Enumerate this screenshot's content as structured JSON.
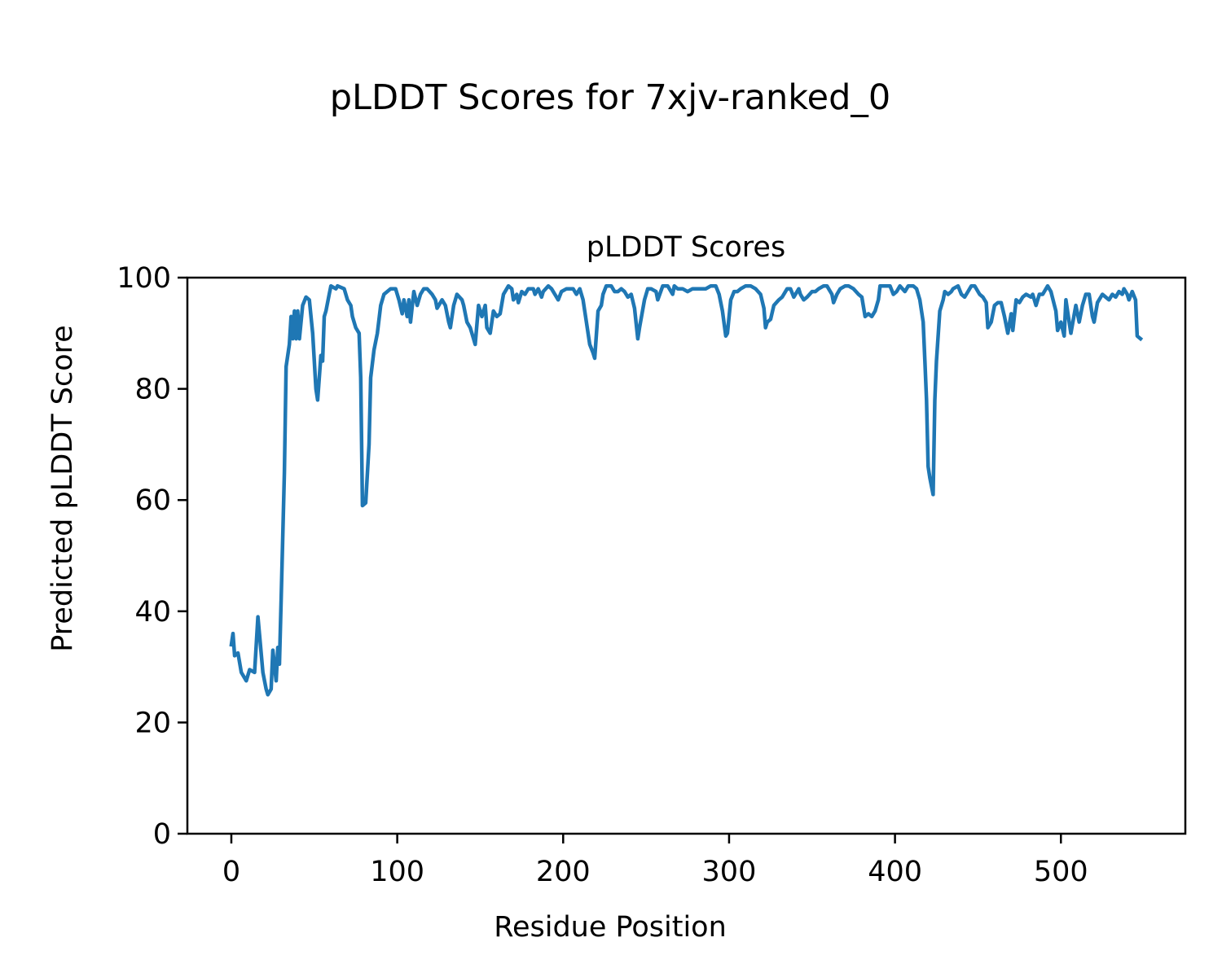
{
  "chart_data": {
    "type": "line",
    "suptitle": "pLDDT Scores for 7xjv-ranked_0",
    "title": "pLDDT Scores",
    "xlabel": "Residue Position",
    "ylabel": "Predicted pLDDT Score",
    "xlim": [
      -26.5,
      575
    ],
    "ylim": [
      0,
      100
    ],
    "xticks": [
      0,
      100,
      200,
      300,
      400,
      500
    ],
    "xtick_labels": [
      "0",
      "100",
      "200",
      "300",
      "400",
      "500"
    ],
    "yticks": [
      0,
      20,
      40,
      60,
      80,
      100
    ],
    "ytick_labels": [
      "0",
      "20",
      "40",
      "60",
      "80",
      "100"
    ],
    "grid": false,
    "series": [
      {
        "name": "pLDDT",
        "color": "#1f77b4",
        "points": [
          [
            0,
            34
          ],
          [
            1,
            36
          ],
          [
            2,
            32
          ],
          [
            4,
            32.5
          ],
          [
            6,
            29
          ],
          [
            9,
            27.5
          ],
          [
            11,
            29.5
          ],
          [
            14,
            29
          ],
          [
            16,
            39
          ],
          [
            19,
            29
          ],
          [
            21,
            26
          ],
          [
            22,
            25
          ],
          [
            24,
            26
          ],
          [
            25,
            33
          ],
          [
            27,
            27.5
          ],
          [
            28,
            33.5
          ],
          [
            29,
            30.5
          ],
          [
            30,
            42
          ],
          [
            32,
            65
          ],
          [
            33,
            84
          ],
          [
            35,
            88
          ],
          [
            36,
            93
          ],
          [
            37,
            89
          ],
          [
            38,
            94
          ],
          [
            39,
            89
          ],
          [
            40,
            94
          ],
          [
            41,
            89
          ],
          [
            43,
            95
          ],
          [
            45,
            96.5
          ],
          [
            47,
            96
          ],
          [
            49,
            90
          ],
          [
            51,
            80
          ],
          [
            52,
            78
          ],
          [
            54,
            86
          ],
          [
            55,
            85
          ],
          [
            56,
            93
          ],
          [
            57,
            94
          ],
          [
            59,
            97
          ],
          [
            60,
            98.5
          ],
          [
            63,
            98
          ],
          [
            64,
            98.5
          ],
          [
            68,
            98
          ],
          [
            70,
            96
          ],
          [
            72,
            95
          ],
          [
            73,
            93
          ],
          [
            75,
            91
          ],
          [
            77,
            90
          ],
          [
            78,
            82
          ],
          [
            79,
            59
          ],
          [
            81,
            59.5
          ],
          [
            83,
            70
          ],
          [
            84,
            82
          ],
          [
            86,
            87
          ],
          [
            88,
            90
          ],
          [
            90,
            95
          ],
          [
            92,
            97
          ],
          [
            96,
            98
          ],
          [
            99,
            98
          ],
          [
            101,
            96
          ],
          [
            103,
            93.5
          ],
          [
            104,
            96
          ],
          [
            106,
            93
          ],
          [
            107,
            96
          ],
          [
            108,
            92
          ],
          [
            110,
            97.5
          ],
          [
            112,
            95
          ],
          [
            114,
            97
          ],
          [
            116,
            98
          ],
          [
            118,
            98
          ],
          [
            121,
            97
          ],
          [
            123,
            96
          ],
          [
            124,
            94.5
          ],
          [
            127,
            96
          ],
          [
            129,
            95
          ],
          [
            131,
            92
          ],
          [
            132,
            91
          ],
          [
            134,
            95
          ],
          [
            136,
            97
          ],
          [
            139,
            96
          ],
          [
            140,
            95
          ],
          [
            142,
            92
          ],
          [
            144,
            91
          ],
          [
            146,
            89
          ],
          [
            147,
            88
          ],
          [
            149,
            95
          ],
          [
            151,
            93
          ],
          [
            153,
            95
          ],
          [
            154,
            91
          ],
          [
            156,
            90
          ],
          [
            158,
            94
          ],
          [
            160,
            93
          ],
          [
            162,
            93.5
          ],
          [
            164,
            97
          ],
          [
            167,
            98.5
          ],
          [
            169,
            98
          ],
          [
            170,
            96
          ],
          [
            172,
            97
          ],
          [
            173,
            95.5
          ],
          [
            175,
            97.5
          ],
          [
            177,
            97
          ],
          [
            179,
            98
          ],
          [
            182,
            98
          ],
          [
            183,
            97
          ],
          [
            185,
            98
          ],
          [
            187,
            96.5
          ],
          [
            188,
            97.5
          ],
          [
            191,
            98.5
          ],
          [
            193,
            98
          ],
          [
            195,
            97
          ],
          [
            197,
            96
          ],
          [
            199,
            97.5
          ],
          [
            202,
            98
          ],
          [
            206,
            98
          ],
          [
            208,
            97
          ],
          [
            210,
            98
          ],
          [
            212,
            96
          ],
          [
            214,
            92
          ],
          [
            216,
            88
          ],
          [
            218,
            86.5
          ],
          [
            219,
            85.5
          ],
          [
            221,
            94
          ],
          [
            223,
            95
          ],
          [
            224,
            97
          ],
          [
            226,
            98.5
          ],
          [
            229,
            98.5
          ],
          [
            231,
            97.5
          ],
          [
            233,
            97.5
          ],
          [
            235,
            98
          ],
          [
            237,
            97.5
          ],
          [
            239,
            96.5
          ],
          [
            241,
            97
          ],
          [
            243,
            94.5
          ],
          [
            245,
            89
          ],
          [
            246,
            91
          ],
          [
            249,
            96
          ],
          [
            251,
            98
          ],
          [
            253,
            98
          ],
          [
            256,
            97.5
          ],
          [
            257,
            96
          ],
          [
            260,
            98.5
          ],
          [
            263,
            98.5
          ],
          [
            266,
            97
          ],
          [
            267,
            98.5
          ],
          [
            269,
            98
          ],
          [
            272,
            98
          ],
          [
            275,
            97.5
          ],
          [
            278,
            98
          ],
          [
            280,
            98
          ],
          [
            283,
            98
          ],
          [
            286,
            98
          ],
          [
            289,
            98.5
          ],
          [
            292,
            98.5
          ],
          [
            294,
            97
          ],
          [
            296,
            94
          ],
          [
            298,
            89.5
          ],
          [
            299,
            90
          ],
          [
            301,
            96
          ],
          [
            303,
            97.5
          ],
          [
            305,
            97.5
          ],
          [
            307,
            98
          ],
          [
            310,
            98.5
          ],
          [
            313,
            98.5
          ],
          [
            316,
            98
          ],
          [
            319,
            97
          ],
          [
            321,
            94.5
          ],
          [
            322,
            91
          ],
          [
            323,
            92
          ],
          [
            325,
            92.5
          ],
          [
            327,
            95
          ],
          [
            330,
            96
          ],
          [
            332,
            96.5
          ],
          [
            335,
            98
          ],
          [
            337,
            98
          ],
          [
            339,
            96.5
          ],
          [
            342,
            98
          ],
          [
            343,
            97
          ],
          [
            345,
            96
          ],
          [
            347,
            96.5
          ],
          [
            350,
            97.5
          ],
          [
            352,
            97.5
          ],
          [
            354,
            98
          ],
          [
            357,
            98.5
          ],
          [
            359,
            98.5
          ],
          [
            362,
            97
          ],
          [
            363,
            95.5
          ],
          [
            365,
            97
          ],
          [
            367,
            98
          ],
          [
            370,
            98.5
          ],
          [
            372,
            98.5
          ],
          [
            375,
            98
          ],
          [
            378,
            97
          ],
          [
            380,
            96.5
          ],
          [
            382,
            93
          ],
          [
            384,
            93.5
          ],
          [
            386,
            93
          ],
          [
            388,
            94
          ],
          [
            390,
            96
          ],
          [
            391,
            98.5
          ],
          [
            394,
            98.5
          ],
          [
            397,
            98.5
          ],
          [
            399,
            97
          ],
          [
            401,
            97.5
          ],
          [
            403,
            98.5
          ],
          [
            406,
            97.5
          ],
          [
            408,
            98.5
          ],
          [
            411,
            98.5
          ],
          [
            413,
            98
          ],
          [
            415,
            96
          ],
          [
            417,
            92
          ],
          [
            418,
            85
          ],
          [
            419,
            78
          ],
          [
            420,
            66
          ],
          [
            421,
            64
          ],
          [
            423,
            61
          ],
          [
            424,
            78
          ],
          [
            425,
            85
          ],
          [
            427,
            94
          ],
          [
            429,
            96
          ],
          [
            430,
            97.5
          ],
          [
            432,
            97
          ],
          [
            434,
            97.5
          ],
          [
            435,
            98
          ],
          [
            438,
            98.5
          ],
          [
            440,
            97
          ],
          [
            442,
            96.5
          ],
          [
            444,
            97.5
          ],
          [
            446,
            98.5
          ],
          [
            448,
            98.5
          ],
          [
            451,
            97
          ],
          [
            453,
            96.5
          ],
          [
            455,
            95.5
          ],
          [
            456,
            91
          ],
          [
            458,
            92
          ],
          [
            460,
            95
          ],
          [
            462,
            95.5
          ],
          [
            464,
            95.5
          ],
          [
            466,
            93
          ],
          [
            468,
            90
          ],
          [
            470,
            93.5
          ],
          [
            471,
            90.5
          ],
          [
            473,
            96
          ],
          [
            475,
            95.5
          ],
          [
            477,
            96.5
          ],
          [
            479,
            97
          ],
          [
            482,
            96.5
          ],
          [
            483,
            97
          ],
          [
            485,
            95
          ],
          [
            487,
            97
          ],
          [
            489,
            97
          ],
          [
            492,
            98.5
          ],
          [
            494,
            97.5
          ],
          [
            497,
            94
          ],
          [
            498,
            90.5
          ],
          [
            500,
            92
          ],
          [
            502,
            89.5
          ],
          [
            503,
            96
          ],
          [
            505,
            92
          ],
          [
            506,
            90
          ],
          [
            509,
            95
          ],
          [
            511,
            92
          ],
          [
            513,
            95
          ],
          [
            515,
            97
          ],
          [
            517,
            97
          ],
          [
            519,
            93
          ],
          [
            520,
            92
          ],
          [
            522,
            95.5
          ],
          [
            525,
            97
          ],
          [
            527,
            96.5
          ],
          [
            529,
            96
          ],
          [
            531,
            97
          ],
          [
            533,
            96.5
          ],
          [
            535,
            97.5
          ],
          [
            537,
            97
          ],
          [
            538,
            98
          ],
          [
            540,
            97
          ],
          [
            541,
            96
          ],
          [
            543,
            97.5
          ],
          [
            545,
            96
          ],
          [
            546,
            89.5
          ],
          [
            548,
            89
          ]
        ]
      }
    ]
  }
}
